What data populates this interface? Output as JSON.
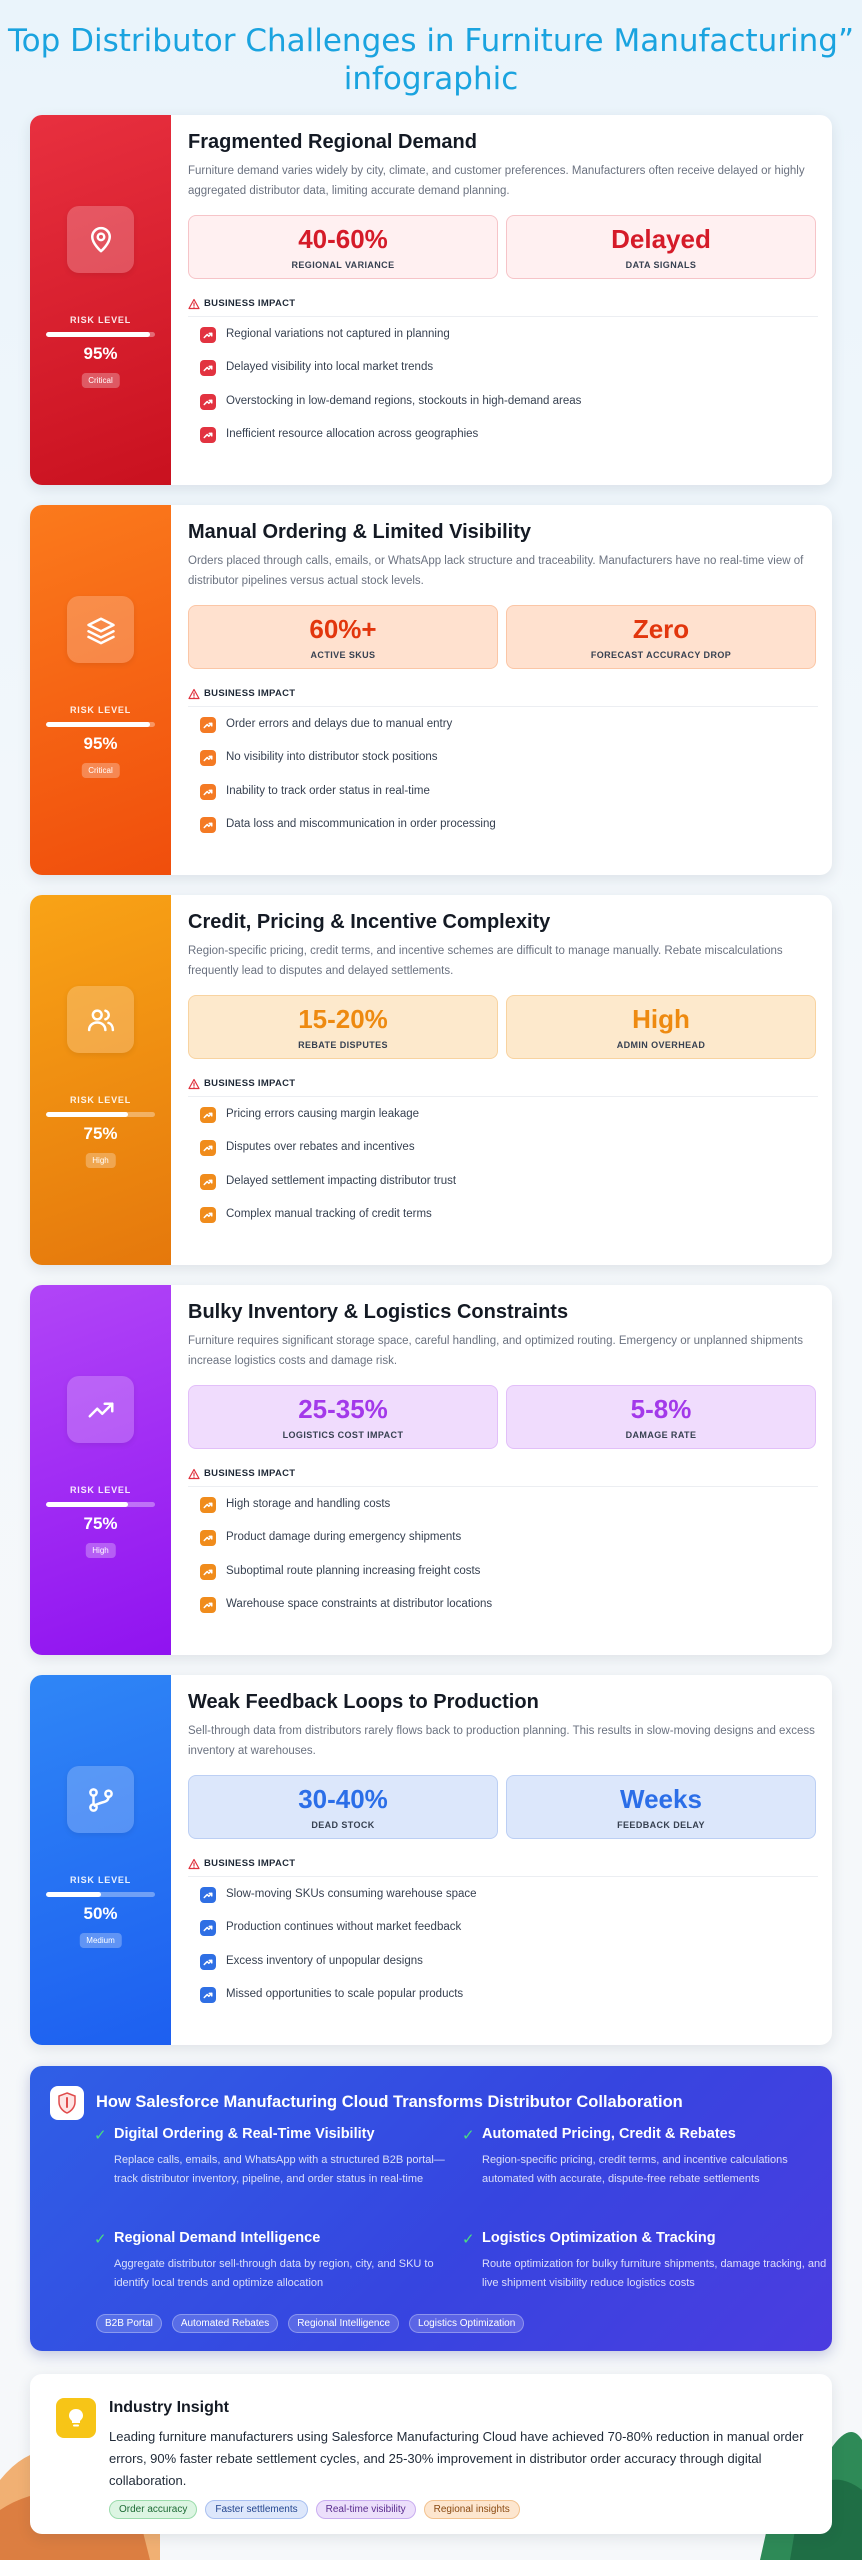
{
  "page": {
    "title": "Top Distributor Challenges in Furniture Manufacturing” infographic"
  },
  "challenges": [
    {
      "title": "Fragmented Regional Demand",
      "description": "Furniture demand varies widely by city, climate, and customer preferences. Manufacturers often receive delayed or highly aggregated distributor data, limiting accurate demand planning.",
      "icon": "map-pin-icon",
      "risk_label": "RISK LEVEL",
      "risk_value": "95%",
      "risk_fraction": 0.95,
      "risk_badge": "Critical",
      "colors": {
        "side_start": "#e8303f",
        "side_end": "#c9111f",
        "accent": "#d51b29",
        "metric_bg": "#fff0f1",
        "metric_border": "#f6c4c8",
        "dot": "#e23340"
      },
      "metrics": [
        {
          "value": "40-60%",
          "label": "REGIONAL VARIANCE"
        },
        {
          "value": "Delayed",
          "label": "DATA SIGNALS"
        }
      ],
      "impact_label": "BUSINESS IMPACT",
      "impacts": [
        "Regional variations not captured in planning",
        "Delayed visibility into local market trends",
        "Overstocking in low-demand regions, stockouts in high-demand areas",
        "Inefficient resource allocation across geographies"
      ]
    },
    {
      "title": "Manual Ordering & Limited Visibility",
      "description": "Orders placed through calls, emails, or WhatsApp lack structure and traceability. Manufacturers have no real-time view of distributor pipelines versus actual stock levels.",
      "icon": "layers-icon",
      "risk_label": "RISK LEVEL",
      "risk_value": "95%",
      "risk_fraction": 0.95,
      "risk_badge": "Critical",
      "colors": {
        "side_start": "#fb7a1c",
        "side_end": "#f04e0c",
        "accent": "#e2360d",
        "metric_bg": "#ffe1cf",
        "metric_border": "#fbc6a6",
        "dot": "#f47a24"
      },
      "metrics": [
        {
          "value": "60%+",
          "label": "ACTIVE SKUS"
        },
        {
          "value": "Zero",
          "label": "FORECAST ACCURACY DROP"
        }
      ],
      "impact_label": "BUSINESS IMPACT",
      "impacts": [
        "Order errors and delays due to manual entry",
        "No visibility into distributor stock positions",
        "Inability to track order status in real-time",
        "Data loss and miscommunication in order processing"
      ]
    },
    {
      "title": "Credit, Pricing & Incentive Complexity",
      "description": "Region-specific pricing, credit terms, and incentive schemes are difficult to manage manually. Rebate miscalculations frequently lead to disputes and delayed settlements.",
      "icon": "users-icon",
      "risk_label": "RISK LEVEL",
      "risk_value": "75%",
      "risk_fraction": 0.75,
      "risk_badge": "High",
      "colors": {
        "side_start": "#f9a316",
        "side_end": "#e5780c",
        "accent": "#ee8a10",
        "metric_bg": "#fde9cc",
        "metric_border": "#f8d3a0",
        "dot": "#f08c1c"
      },
      "metrics": [
        {
          "value": "15-20%",
          "label": "REBATE DISPUTES"
        },
        {
          "value": "High",
          "label": "ADMIN OVERHEAD"
        }
      ],
      "impact_label": "BUSINESS IMPACT",
      "impacts": [
        "Pricing errors causing margin leakage",
        "Disputes over rebates and incentives",
        "Delayed settlement impacting distributor trust",
        "Complex manual tracking of credit terms"
      ]
    },
    {
      "title": "Bulky Inventory & Logistics Constraints",
      "description": "Furniture requires significant storage space, careful handling, and optimized routing. Emergency or unplanned shipments increase logistics costs and damage risk.",
      "icon": "trending-up-icon",
      "risk_label": "RISK LEVEL",
      "risk_value": "75%",
      "risk_fraction": 0.75,
      "risk_badge": "High",
      "colors": {
        "side_start": "#b145f7",
        "side_end": "#9013f0",
        "accent": "#a339ea",
        "metric_bg": "#f0dcfd",
        "metric_border": "#e2bff9",
        "dot": "#f08c1c"
      },
      "metrics": [
        {
          "value": "25-35%",
          "label": "LOGISTICS COST IMPACT"
        },
        {
          "value": "5-8%",
          "label": "DAMAGE RATE"
        }
      ],
      "impact_label": "BUSINESS IMPACT",
      "impacts": [
        "High storage and handling costs",
        "Product damage during emergency shipments",
        "Suboptimal route planning increasing freight costs",
        "Warehouse space constraints at distributor locations"
      ]
    },
    {
      "title": "Weak Feedback Loops to Production",
      "description": "Sell-through data from distributors rarely flows back to production planning. This results in slow-moving designs and excess inventory at warehouses.",
      "icon": "git-branch-icon",
      "risk_label": "RISK LEVEL",
      "risk_value": "50%",
      "risk_fraction": 0.5,
      "risk_badge": "Medium",
      "colors": {
        "side_start": "#2f86f6",
        "side_end": "#1d5ff0",
        "accent": "#2b6ee8",
        "metric_bg": "#dce7fb",
        "metric_border": "#bccff4",
        "dot": "#2f6fe4"
      },
      "metrics": [
        {
          "value": "30-40%",
          "label": "DEAD STOCK"
        },
        {
          "value": "Weeks",
          "label": "FEEDBACK DELAY"
        }
      ],
      "impact_label": "BUSINESS IMPACT",
      "impacts": [
        "Slow-moving SKUs consuming warehouse space",
        "Production continues without market feedback",
        "Excess inventory of unpopular designs",
        "Missed opportunities to scale popular products"
      ]
    }
  ],
  "salesforce": {
    "title": "How Salesforce Manufacturing Cloud Transforms Distributor Collaboration",
    "icon": "salesforce-shield-icon",
    "check_symbol": "✓",
    "items": [
      {
        "title": "Digital Ordering & Real-Time Visibility",
        "description": "Replace calls, emails, and WhatsApp with a structured B2B portal—track distributor inventory, pipeline, and order status in real-time"
      },
      {
        "title": "Automated Pricing, Credit & Rebates",
        "description": "Region-specific pricing, credit terms, and incentive calculations automated with accurate, dispute-free rebate settlements"
      },
      {
        "title": "Regional Demand Intelligence",
        "description": "Aggregate distributor sell-through data by region, city, and SKU to identify local trends and optimize allocation"
      },
      {
        "title": "Logistics Optimization & Tracking",
        "description": "Route optimization for bulky furniture shipments, damage tracking, and live shipment visibility reduce logistics costs"
      }
    ],
    "tags": [
      "B2B Portal",
      "Automated Rebates",
      "Regional Intelligence",
      "Logistics Optimization"
    ]
  },
  "insight": {
    "title": "Industry Insight",
    "icon": "lightbulb-icon",
    "text": "Leading furniture manufacturers using Salesforce Manufacturing Cloud have achieved 70-80% reduction in manual order errors, 90% faster rebate settlement cycles, and 25-30% improvement in distributor order accuracy through digital collaboration.",
    "tags": [
      {
        "label": "Order accuracy",
        "bg": "#dcf5e2",
        "border": "#9adbab",
        "color": "#1e6b36"
      },
      {
        "label": "Faster settlements",
        "bg": "#dde7fb",
        "border": "#a9c0f0",
        "color": "#23458f"
      },
      {
        "label": "Real-time visibility",
        "bg": "#ecdffb",
        "border": "#c9adf0",
        "color": "#5a2d8f"
      },
      {
        "label": "Regional insights",
        "bg": "#fde6cf",
        "border": "#f2c28f",
        "color": "#8a4a12"
      }
    ]
  }
}
